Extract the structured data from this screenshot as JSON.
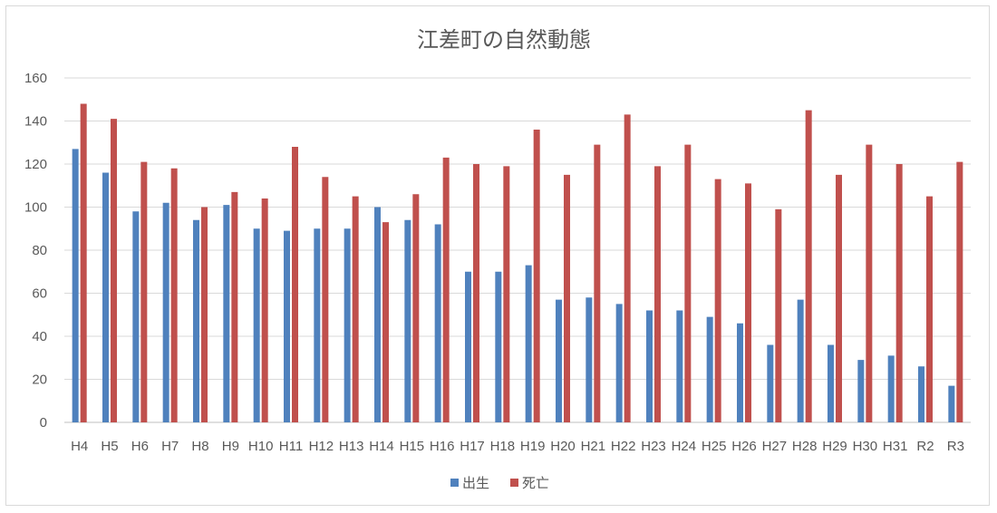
{
  "chart_data": {
    "type": "bar",
    "title": "江差町の自然動態",
    "xlabel": "",
    "ylabel": "",
    "ylim": [
      0,
      160
    ],
    "yticks": [
      0,
      20,
      40,
      60,
      80,
      100,
      120,
      140,
      160
    ],
    "grid": true,
    "legend_position": "bottom",
    "categories": [
      "H4",
      "H5",
      "H6",
      "H7",
      "H8",
      "H9",
      "H10",
      "H11",
      "H12",
      "H13",
      "H14",
      "H15",
      "H16",
      "H17",
      "H18",
      "H19",
      "H20",
      "H21",
      "H22",
      "H23",
      "H24",
      "H25",
      "H26",
      "H27",
      "H28",
      "H29",
      "H30",
      "H31",
      "R2",
      "R3"
    ],
    "series": [
      {
        "name": "出生",
        "color": "#4f81bd",
        "values": [
          127,
          116,
          98,
          102,
          94,
          101,
          90,
          89,
          90,
          90,
          100,
          94,
          92,
          70,
          70,
          73,
          57,
          58,
          55,
          52,
          52,
          49,
          46,
          36,
          57,
          36,
          29,
          31,
          26,
          17
        ]
      },
      {
        "name": "死亡",
        "color": "#c0504d",
        "values": [
          148,
          141,
          121,
          118,
          100,
          107,
          104,
          128,
          114,
          105,
          93,
          106,
          123,
          120,
          119,
          136,
          115,
          129,
          143,
          119,
          129,
          113,
          111,
          99,
          145,
          115,
          129,
          120,
          105,
          121
        ]
      }
    ]
  }
}
